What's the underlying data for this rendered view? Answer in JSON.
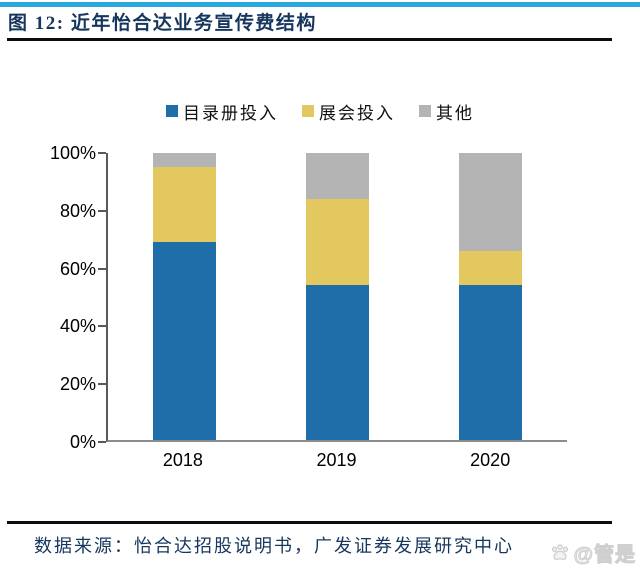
{
  "header": {
    "figure_label": "图 12: 近年怡合达业务宣传费结构"
  },
  "chart_data": {
    "type": "bar",
    "stacked": true,
    "unit": "percent_of_total",
    "title": "近年怡合达业务宣传费结构",
    "categories": [
      "2018",
      "2019",
      "2020"
    ],
    "series": [
      {
        "name": "目录册投入",
        "color": "#1F6DA9",
        "values": [
          69,
          54,
          54
        ]
      },
      {
        "name": "展会投入",
        "color": "#E3C75F",
        "values": [
          26,
          30,
          12
        ]
      },
      {
        "name": "其他",
        "color": "#B4B4B4",
        "values": [
          5,
          16,
          34
        ]
      }
    ],
    "y_ticks": [
      "100%",
      "80%",
      "60%",
      "40%",
      "20%",
      "0%"
    ],
    "ylim": [
      0,
      100
    ],
    "grid": false,
    "legend_position": "top-center"
  },
  "footer": {
    "source": "数据来源：怡合达招股说明书，广发证券发展研究中心",
    "watermark": "@管是"
  },
  "colors": {
    "top_rule": "#29A8E0",
    "title_text": "#17365D",
    "source_text": "#17365D",
    "divider": "#0D0D0D"
  }
}
